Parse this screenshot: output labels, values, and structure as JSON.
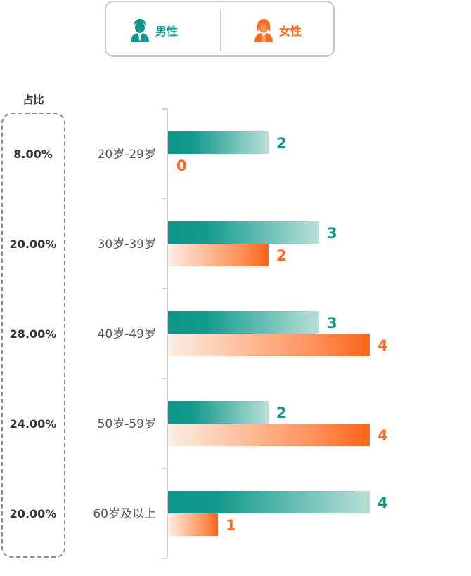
{
  "legend": {
    "male": {
      "label": "男性",
      "icon": "male-user-icon",
      "color": "#119788"
    },
    "female": {
      "label": "女性",
      "icon": "female-user-icon",
      "color": "#fc6a1e"
    }
  },
  "share_header": "占比",
  "chart_data": {
    "type": "bar",
    "orientation": "horizontal",
    "categories": [
      "20岁-29岁",
      "30岁-39岁",
      "40岁-49岁",
      "50岁-59岁",
      "60岁及以上"
    ],
    "series": [
      {
        "name": "男性",
        "values": [
          2,
          3,
          3,
          2,
          4
        ],
        "color": "#119788"
      },
      {
        "name": "女性",
        "values": [
          0,
          2,
          4,
          4,
          1
        ],
        "color": "#fc6a1e"
      }
    ],
    "share": [
      "8.00%",
      "20.00%",
      "28.00%",
      "24.00%",
      "20.00%"
    ],
    "xlim": [
      0,
      4
    ],
    "legend_position": "top",
    "grid": false,
    "data_labels": true
  }
}
